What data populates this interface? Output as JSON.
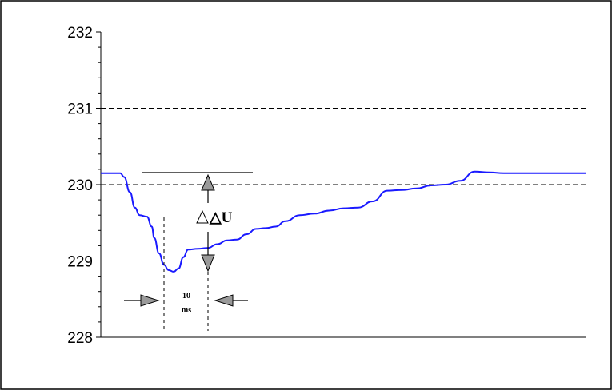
{
  "chart_data": {
    "type": "line",
    "title": "",
    "xlabel": "",
    "ylabel": "",
    "ylim": [
      228,
      232
    ],
    "yticks": [
      232,
      231,
      230,
      229,
      228
    ],
    "grid": {
      "horizontal_dashed_at": [
        231,
        230,
        229
      ]
    },
    "x_range": [
      0,
      100
    ],
    "series": [
      {
        "color": "#1a1aff",
        "x": [
          0,
          4,
          4.8,
          6,
          7,
          8,
          9.5,
          10.5,
          11,
          12,
          13,
          14,
          15,
          16,
          17,
          18,
          20,
          22,
          24,
          26,
          28,
          30,
          32,
          34,
          36,
          38,
          41,
          44,
          47,
          50,
          53,
          56,
          59,
          62,
          65,
          68,
          71,
          74,
          77,
          80,
          83,
          86,
          89,
          92,
          94,
          95,
          96,
          98,
          100
        ],
        "values": [
          230.15,
          230.15,
          230.1,
          229.9,
          229.7,
          229.6,
          229.58,
          229.45,
          229.3,
          229.1,
          228.95,
          228.88,
          228.86,
          228.9,
          229.05,
          229.15,
          229.16,
          229.17,
          229.22,
          229.27,
          229.28,
          229.35,
          229.42,
          229.43,
          229.45,
          229.52,
          229.6,
          229.62,
          229.66,
          229.69,
          229.7,
          229.78,
          229.92,
          229.93,
          229.95,
          229.99,
          230.0,
          230.05,
          230.17,
          230.16,
          230.15,
          230.15,
          230.15,
          230.15,
          230.15,
          230.15,
          230.15,
          230.15,
          230.15
        ]
      }
    ],
    "annotations": {
      "delta_u_label": "△U",
      "interval_label_top": "10",
      "interval_label_bottom": "ms"
    }
  }
}
